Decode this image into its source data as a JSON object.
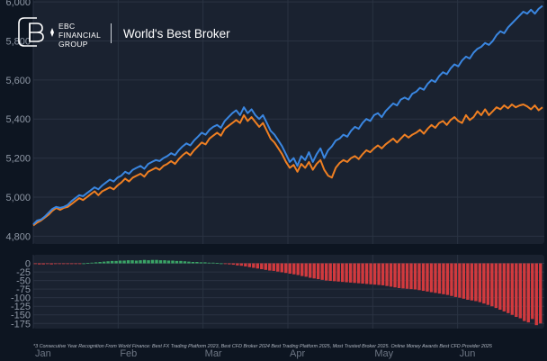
{
  "brand": {
    "name_lines": [
      "EBC",
      "FINANCIAL",
      "GROUP"
    ],
    "tagline": "World's Best Broker"
  },
  "footnote": "*3 Consecutive Year Recognition From World Finance: Best FX Trading Platform 2023, Best CFD Broker 2024 Best Trading Platform 2025, Most Trusted Broker 2025.  Online Money Awards Best CFD Provider 2025",
  "colors": {
    "background": "#0d1521",
    "panel": "#1a2230",
    "grid": "#2a3342",
    "series_blue": "#3a86e0",
    "series_orange": "#ef7f22",
    "bar_positive": "#3aa566",
    "bar_negative": "#d13a3e"
  },
  "chart_data": [
    {
      "type": "line",
      "ylim": [
        4760,
        6010
      ],
      "y_ticks": [
        "6,000",
        "5,800",
        "5,600",
        "5,400",
        "5,200",
        "5,000",
        "4,800"
      ],
      "x_labels": [
        "Jan",
        "Feb",
        "Mar",
        "Apr",
        "May",
        "Jun"
      ],
      "grid": true,
      "series": [
        {
          "color": "blue",
          "values": [
            4860,
            4880,
            4885,
            4900,
            4920,
            4940,
            4950,
            4945,
            4950,
            4960,
            4980,
            4995,
            5010,
            5005,
            5020,
            5035,
            5050,
            5040,
            5060,
            5075,
            5090,
            5080,
            5100,
            5110,
            5130,
            5120,
            5140,
            5150,
            5160,
            5145,
            5170,
            5180,
            5190,
            5185,
            5200,
            5210,
            5225,
            5215,
            5240,
            5260,
            5275,
            5265,
            5290,
            5310,
            5330,
            5320,
            5345,
            5360,
            5370,
            5355,
            5390,
            5410,
            5430,
            5445,
            5420,
            5460,
            5430,
            5450,
            5420,
            5400,
            5420,
            5380,
            5340,
            5320,
            5290,
            5260,
            5220,
            5180,
            5200,
            5160,
            5210,
            5190,
            5230,
            5180,
            5220,
            5250,
            5200,
            5240,
            5260,
            5290,
            5300,
            5320,
            5310,
            5340,
            5360,
            5350,
            5380,
            5400,
            5390,
            5420,
            5430,
            5410,
            5440,
            5460,
            5480,
            5470,
            5500,
            5510,
            5500,
            5530,
            5540,
            5560,
            5550,
            5580,
            5600,
            5590,
            5620,
            5640,
            5630,
            5660,
            5680,
            5670,
            5700,
            5720,
            5710,
            5740,
            5760,
            5770,
            5790,
            5780,
            5800,
            5830,
            5850,
            5840,
            5870,
            5890,
            5910,
            5930,
            5950,
            5940,
            5960,
            5940,
            5965,
            5980
          ]
        },
        {
          "color": "orange",
          "values": [
            4855,
            4870,
            4880,
            4895,
            4910,
            4930,
            4945,
            4935,
            4945,
            4950,
            4965,
            4980,
            4995,
            4985,
            5000,
            5015,
            5030,
            5010,
            5030,
            5040,
            5050,
            5040,
            5060,
            5075,
            5095,
            5080,
            5100,
            5110,
            5120,
            5105,
            5130,
            5140,
            5150,
            5140,
            5160,
            5170,
            5185,
            5170,
            5195,
            5215,
            5230,
            5215,
            5240,
            5260,
            5280,
            5270,
            5300,
            5315,
            5330,
            5315,
            5350,
            5365,
            5380,
            5395,
            5380,
            5420,
            5390,
            5410,
            5385,
            5360,
            5380,
            5340,
            5300,
            5280,
            5250,
            5220,
            5180,
            5150,
            5165,
            5130,
            5170,
            5150,
            5180,
            5140,
            5170,
            5190,
            5140,
            5110,
            5100,
            5150,
            5175,
            5190,
            5180,
            5200,
            5210,
            5195,
            5220,
            5240,
            5230,
            5250,
            5265,
            5250,
            5270,
            5285,
            5300,
            5280,
            5300,
            5320,
            5305,
            5320,
            5330,
            5345,
            5325,
            5350,
            5370,
            5355,
            5380,
            5390,
            5370,
            5395,
            5410,
            5390,
            5380,
            5420,
            5395,
            5410,
            5440,
            5420,
            5450,
            5420,
            5440,
            5460,
            5450,
            5470,
            5455,
            5475,
            5460,
            5470,
            5475,
            5465,
            5450,
            5470,
            5445,
            5460
          ]
        }
      ]
    },
    {
      "type": "bar",
      "ylim": [
        -190,
        25
      ],
      "y_ticks": [
        "0",
        "-25",
        "-50",
        "-75",
        "-100",
        "-125",
        "-150",
        "-175"
      ],
      "x_labels": [
        "Jan",
        "Feb",
        "Mar",
        "Apr",
        "May",
        "Jun"
      ],
      "grid": true,
      "series": [
        {
          "name": "spread",
          "values": [
            -2,
            -3,
            -3,
            -2,
            -3,
            -2,
            -2,
            -1,
            -2,
            -1,
            -1,
            -1,
            0,
            1,
            2,
            3,
            4,
            5,
            6,
            7,
            7,
            8,
            8,
            9,
            9,
            8,
            9,
            10,
            9,
            10,
            10,
            9,
            9,
            8,
            8,
            7,
            7,
            6,
            5,
            4,
            4,
            3,
            3,
            2,
            2,
            1,
            0,
            -2,
            -3,
            -4,
            -6,
            -7,
            -9,
            -11,
            -13,
            -15,
            -17,
            -19,
            -21,
            -22,
            -24,
            -26,
            -28,
            -30,
            -32,
            -34,
            -37,
            -39,
            -42,
            -44,
            -46,
            -48,
            -50,
            -51,
            -52,
            -53,
            -54,
            -55,
            -56,
            -57,
            -58,
            -59,
            -60,
            -61,
            -62,
            -63,
            -64,
            -66,
            -68,
            -70,
            -72,
            -73,
            -74,
            -75,
            -76,
            -78,
            -80,
            -82,
            -84,
            -86,
            -88,
            -90,
            -92,
            -95,
            -98,
            -100,
            -103,
            -106,
            -108,
            -110,
            -113,
            -117,
            -121,
            -125,
            -130,
            -135,
            -140,
            -145,
            -150,
            -156,
            -160,
            -168,
            -172,
            -162,
            -180,
            -175
          ]
        }
      ]
    }
  ]
}
